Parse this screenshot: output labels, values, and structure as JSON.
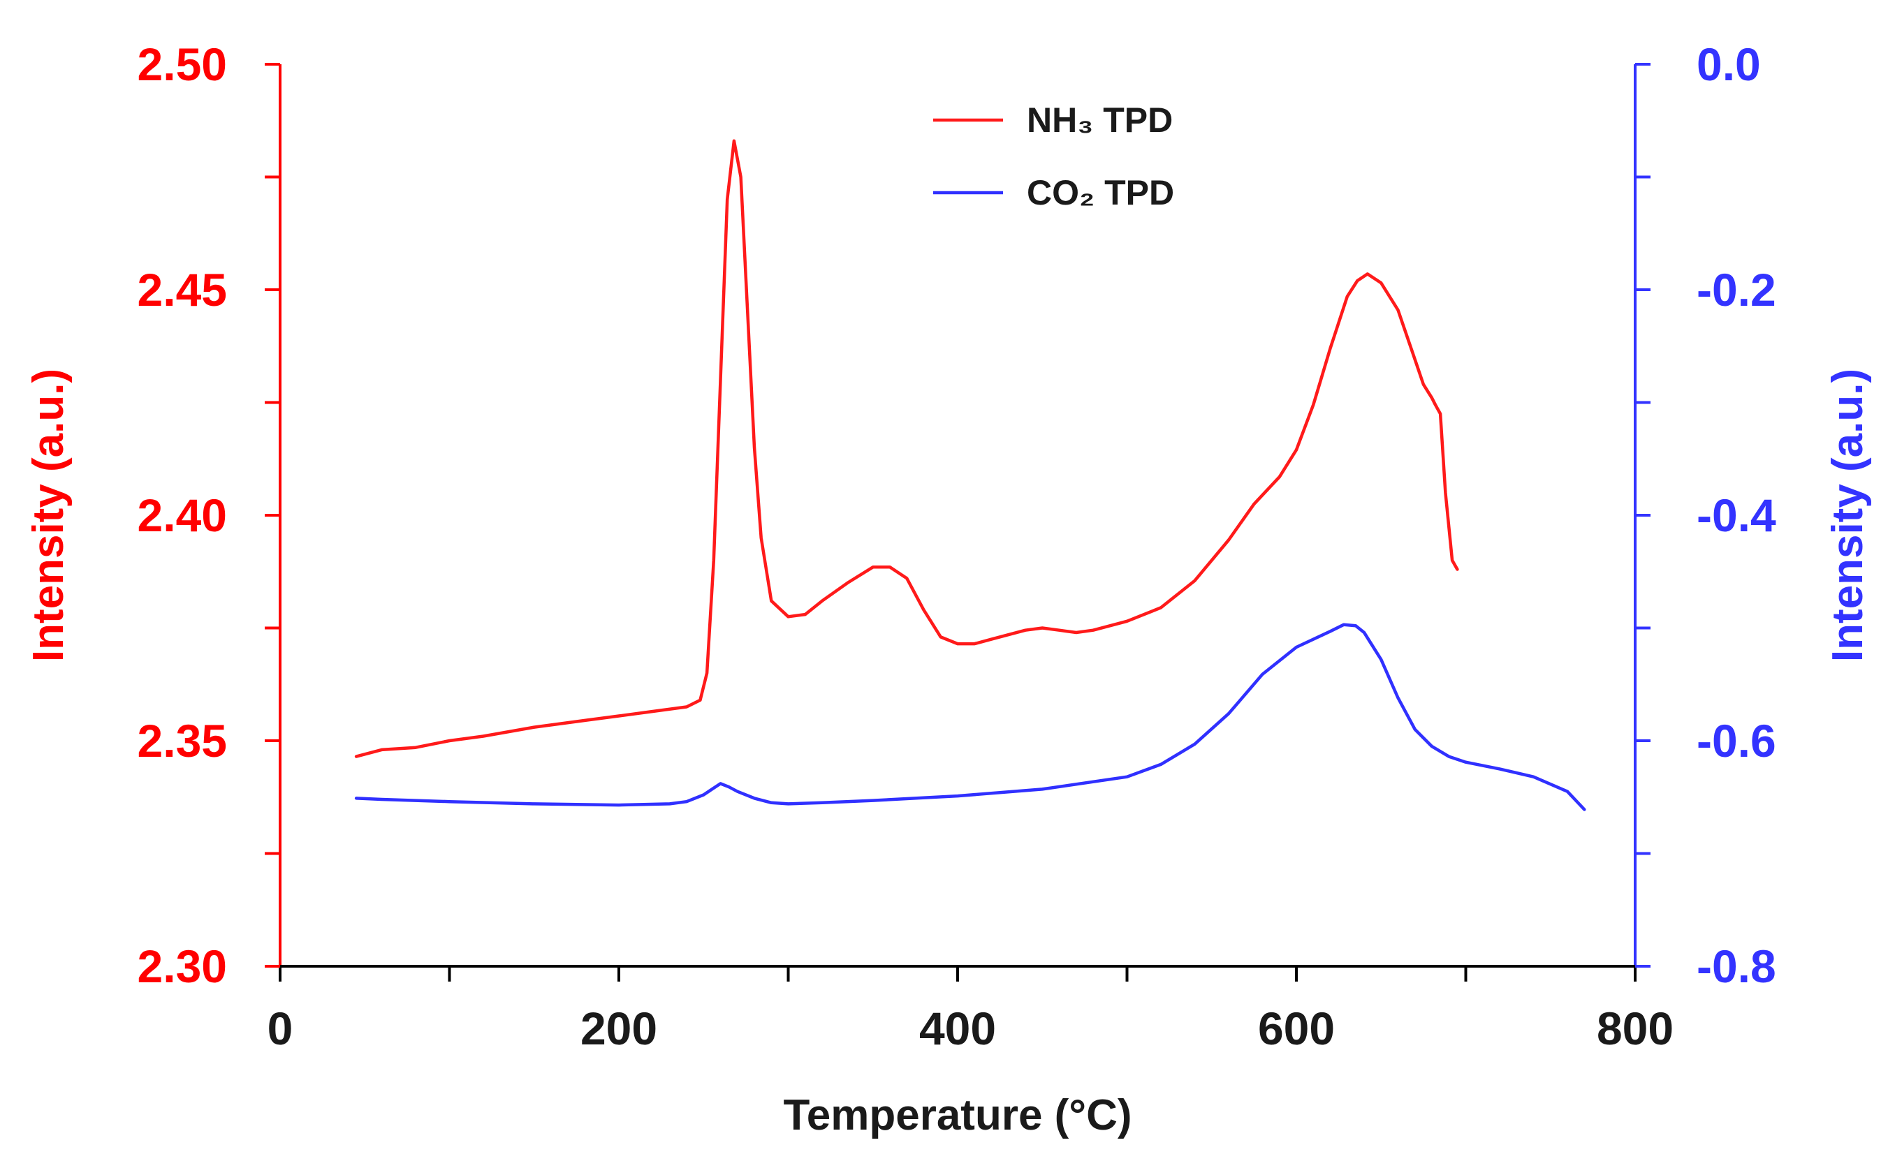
{
  "chart_data": {
    "type": "line",
    "title": "",
    "xlabel": "Temperature (°C)",
    "y_left_label": "Intensity (a.u.)",
    "y_right_label": "Intensity (a.u.)",
    "xlim": [
      0,
      800
    ],
    "ylim_left": [
      2.3,
      2.5
    ],
    "ylim_right": [
      -0.8,
      0.0
    ],
    "x_ticks": [
      0,
      200,
      400,
      600,
      800
    ],
    "x_tick_labels": [
      "0",
      "200",
      "400",
      "600",
      "800"
    ],
    "x_minor_ticks": [
      100,
      300,
      500,
      700
    ],
    "y_left_ticks": [
      2.3,
      2.35,
      2.4,
      2.45,
      2.5
    ],
    "y_left_tick_labels": [
      "2.30",
      "2.35",
      "2.40",
      "2.45",
      "2.50"
    ],
    "y_left_minor_ticks": [
      2.325,
      2.375,
      2.425,
      2.475
    ],
    "y_right_ticks": [
      -0.8,
      -0.6,
      -0.4,
      -0.2,
      0.0
    ],
    "y_right_tick_labels": [
      "-0.8",
      "-0.6",
      "-0.4",
      "-0.2",
      "0.0"
    ],
    "y_right_minor_ticks": [
      -0.7,
      -0.5,
      -0.3,
      -0.1
    ],
    "legend_position": "top-center",
    "colors": {
      "left_axis": "#ff0000",
      "right_axis": "#3333ff",
      "x_axis": "#000000",
      "nh3": "#ff1a1a",
      "co2": "#3030ff"
    },
    "series": [
      {
        "name": "NH₃ TPD",
        "axis": "left",
        "color": "#ff1a1a",
        "x": [
          45,
          60,
          80,
          100,
          120,
          150,
          180,
          200,
          220,
          240,
          248,
          252,
          256,
          260,
          264,
          268,
          272,
          276,
          280,
          284,
          290,
          300,
          310,
          320,
          335,
          350,
          360,
          370,
          380,
          390,
          400,
          410,
          420,
          440,
          450,
          460,
          470,
          480,
          500,
          520,
          540,
          560,
          575,
          590,
          600,
          610,
          620,
          630,
          636,
          642,
          650,
          660,
          670,
          675,
          680,
          682,
          685,
          688,
          692,
          695
        ],
        "y": [
          2.3465,
          2.348,
          2.3485,
          2.35,
          2.351,
          2.353,
          2.3545,
          2.3555,
          2.3565,
          2.3575,
          2.359,
          2.365,
          2.39,
          2.43,
          2.47,
          2.483,
          2.475,
          2.445,
          2.415,
          2.395,
          2.381,
          2.3775,
          2.378,
          2.381,
          2.385,
          2.3885,
          2.3885,
          2.386,
          2.379,
          2.373,
          2.3715,
          2.3715,
          2.3725,
          2.3745,
          2.375,
          2.3745,
          2.374,
          2.3745,
          2.3765,
          2.3795,
          2.3855,
          2.3945,
          2.4025,
          2.4085,
          2.4145,
          2.4245,
          2.437,
          2.4485,
          2.452,
          2.4535,
          2.4515,
          2.4455,
          2.4345,
          2.429,
          2.426,
          2.4245,
          2.4225,
          2.405,
          2.39,
          2.388
        ]
      },
      {
        "name": "CO₂ TPD",
        "axis": "right",
        "color": "#3030ff",
        "x": [
          45,
          60,
          80,
          100,
          150,
          200,
          230,
          240,
          250,
          255,
          260,
          265,
          270,
          280,
          290,
          300,
          320,
          350,
          400,
          450,
          500,
          520,
          540,
          560,
          580,
          600,
          620,
          628,
          635,
          640,
          650,
          660,
          670,
          680,
          690,
          700,
          720,
          740,
          760,
          770
        ],
        "y": [
          -0.651,
          -0.652,
          -0.653,
          -0.654,
          -0.656,
          -0.657,
          -0.656,
          -0.654,
          -0.648,
          -0.643,
          -0.638,
          -0.641,
          -0.645,
          -0.651,
          -0.655,
          -0.656,
          -0.655,
          -0.653,
          -0.649,
          -0.643,
          -0.632,
          -0.621,
          -0.603,
          -0.576,
          -0.541,
          -0.517,
          -0.503,
          -0.497,
          -0.498,
          -0.504,
          -0.528,
          -0.562,
          -0.59,
          -0.605,
          -0.614,
          -0.619,
          -0.625,
          -0.632,
          -0.645,
          -0.661
        ]
      }
    ]
  }
}
